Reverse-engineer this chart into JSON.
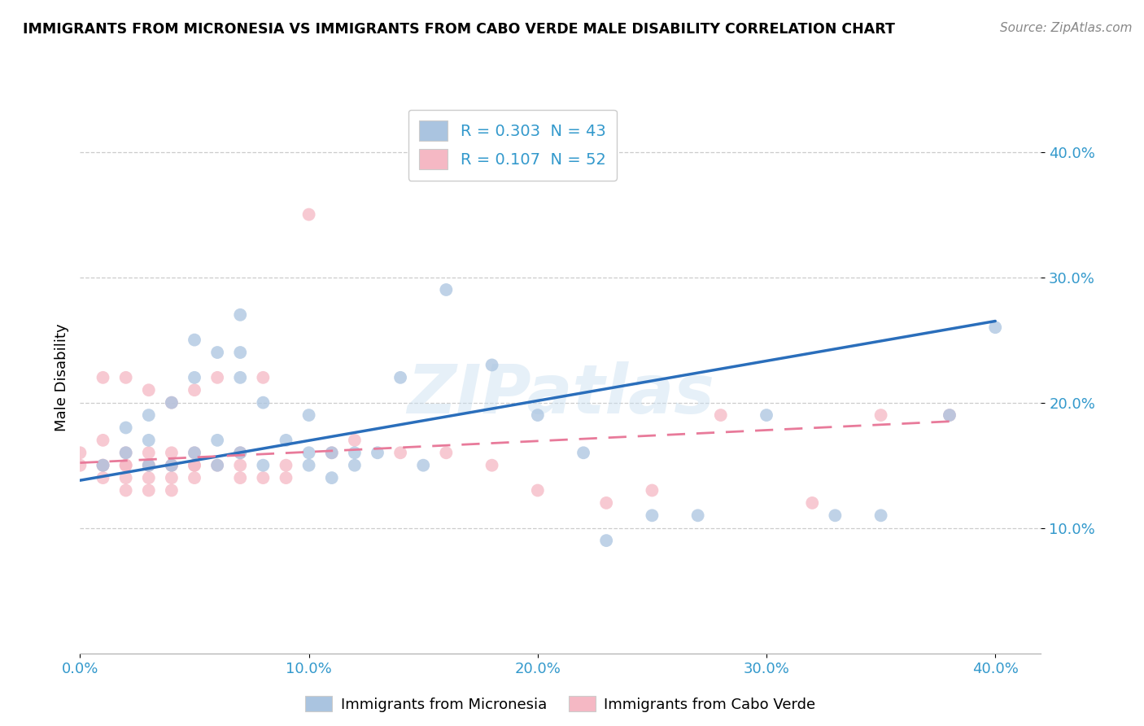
{
  "title": "IMMIGRANTS FROM MICRONESIA VS IMMIGRANTS FROM CABO VERDE MALE DISABILITY CORRELATION CHART",
  "source": "Source: ZipAtlas.com",
  "ylabel_label": "Male Disability",
  "xlim": [
    0.0,
    0.42
  ],
  "ylim": [
    0.0,
    0.44
  ],
  "ytick_labels": [
    "10.0%",
    "20.0%",
    "30.0%",
    "40.0%"
  ],
  "ytick_values": [
    0.1,
    0.2,
    0.3,
    0.4
  ],
  "xtick_values": [
    0.0,
    0.1,
    0.2,
    0.3,
    0.4
  ],
  "grid_color": "#cccccc",
  "micronesia_color": "#aac4e0",
  "cabo_verde_color": "#f5b8c4",
  "micronesia_r": "0.303",
  "micronesia_n": "43",
  "cabo_verde_r": "0.107",
  "cabo_verde_n": "52",
  "legend_r_color": "#3399cc",
  "legend_n_color": "#cc3366",
  "watermark": "ZIPatlas",
  "micronesia_scatter_x": [
    0.01,
    0.02,
    0.02,
    0.03,
    0.03,
    0.03,
    0.04,
    0.04,
    0.05,
    0.05,
    0.05,
    0.06,
    0.06,
    0.06,
    0.07,
    0.07,
    0.07,
    0.07,
    0.08,
    0.08,
    0.09,
    0.1,
    0.1,
    0.1,
    0.11,
    0.11,
    0.12,
    0.12,
    0.13,
    0.14,
    0.15,
    0.16,
    0.18,
    0.2,
    0.22,
    0.23,
    0.25,
    0.27,
    0.3,
    0.33,
    0.35,
    0.38,
    0.4
  ],
  "micronesia_scatter_y": [
    0.15,
    0.16,
    0.18,
    0.15,
    0.17,
    0.19,
    0.15,
    0.2,
    0.16,
    0.22,
    0.25,
    0.15,
    0.17,
    0.24,
    0.16,
    0.22,
    0.24,
    0.27,
    0.15,
    0.2,
    0.17,
    0.15,
    0.16,
    0.19,
    0.14,
    0.16,
    0.15,
    0.16,
    0.16,
    0.22,
    0.15,
    0.29,
    0.23,
    0.19,
    0.16,
    0.09,
    0.11,
    0.11,
    0.19,
    0.11,
    0.11,
    0.19,
    0.26
  ],
  "cabo_verde_scatter_x": [
    0.0,
    0.0,
    0.01,
    0.01,
    0.01,
    0.01,
    0.01,
    0.02,
    0.02,
    0.02,
    0.02,
    0.02,
    0.02,
    0.03,
    0.03,
    0.03,
    0.03,
    0.03,
    0.03,
    0.04,
    0.04,
    0.04,
    0.04,
    0.04,
    0.04,
    0.05,
    0.05,
    0.05,
    0.05,
    0.05,
    0.06,
    0.06,
    0.07,
    0.07,
    0.07,
    0.08,
    0.08,
    0.09,
    0.09,
    0.1,
    0.11,
    0.12,
    0.14,
    0.16,
    0.18,
    0.2,
    0.23,
    0.25,
    0.28,
    0.32,
    0.35,
    0.38
  ],
  "cabo_verde_scatter_y": [
    0.15,
    0.16,
    0.14,
    0.15,
    0.15,
    0.17,
    0.22,
    0.13,
    0.14,
    0.15,
    0.15,
    0.16,
    0.22,
    0.13,
    0.14,
    0.15,
    0.15,
    0.16,
    0.21,
    0.13,
    0.14,
    0.15,
    0.15,
    0.16,
    0.2,
    0.14,
    0.15,
    0.15,
    0.16,
    0.21,
    0.15,
    0.22,
    0.14,
    0.15,
    0.16,
    0.22,
    0.14,
    0.14,
    0.15,
    0.35,
    0.16,
    0.17,
    0.16,
    0.16,
    0.15,
    0.13,
    0.12,
    0.13,
    0.19,
    0.12,
    0.19,
    0.19
  ],
  "micronesia_line_x": [
    0.0,
    0.4
  ],
  "micronesia_line_y": [
    0.138,
    0.265
  ],
  "cabo_verde_line_x": [
    0.0,
    0.38
  ],
  "cabo_verde_line_y": [
    0.152,
    0.185
  ],
  "line_blue": "#2a6ebb",
  "line_pink": "#e87a9a"
}
